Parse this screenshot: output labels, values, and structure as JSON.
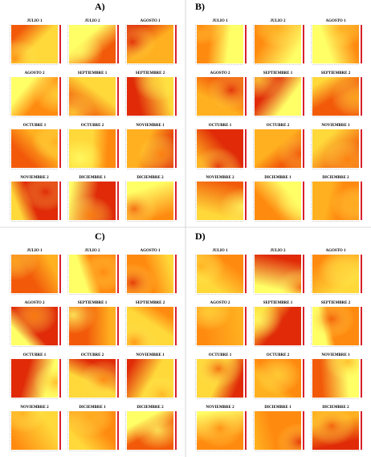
{
  "panels": [
    {
      "label": "A)",
      "maps": [
        "JULIO 1",
        "JULIO 2",
        "AGOSTO 1",
        "AGOSTO 2",
        "SEPTIEMBRE 1",
        "SEPTIEMBRE 2",
        "OCTUBRE 1",
        "OCTUBRE 2",
        "NOVIEMBRE 1",
        "NOVIEMBRE 2",
        "DICIEMBRE 1",
        "DICIEMBRE 2"
      ]
    },
    {
      "label": "B)",
      "maps": [
        "JULIO 1",
        "JULIO 2",
        "AGOSTO 1",
        "AGOSTO 2",
        "SEPTIEMBRE 1",
        "SEPTIEMBRE 2",
        "OCTUBRE 1",
        "OCTUBRE 2",
        "NOVIEMBRE 1",
        "NOVIEMBRE 2",
        "DICIEMBRE 1",
        "DICIEMBRE 2"
      ]
    },
    {
      "label": "C)",
      "maps": [
        "JULIO 1",
        "JULIO 2",
        "AGOSTO 1",
        "AGOSTO 2",
        "SEPTIEMBRE 1",
        "SEPTIEMBRE 2",
        "OCTUBRE 1",
        "OCTUBRE 2",
        "NOVIEMBRE 1",
        "NOVIEMBRE 2",
        "DICIEMBRE 1",
        "DICIEMBRE 2"
      ]
    },
    {
      "label": "D)",
      "maps": [
        "JULIO 1",
        "JULIO 2",
        "AGOSTO 1",
        "AGOSTO 2",
        "SEPTIEMBRE 1",
        "SEPTIEMBRE 2",
        "OCTUBRE 1",
        "OCTUBRE 2",
        "NOVIEMBRE 1",
        "NOVIEMBRE 2",
        "DICIEMBRE 1",
        "DICIEMBRE 2"
      ]
    }
  ]
}
